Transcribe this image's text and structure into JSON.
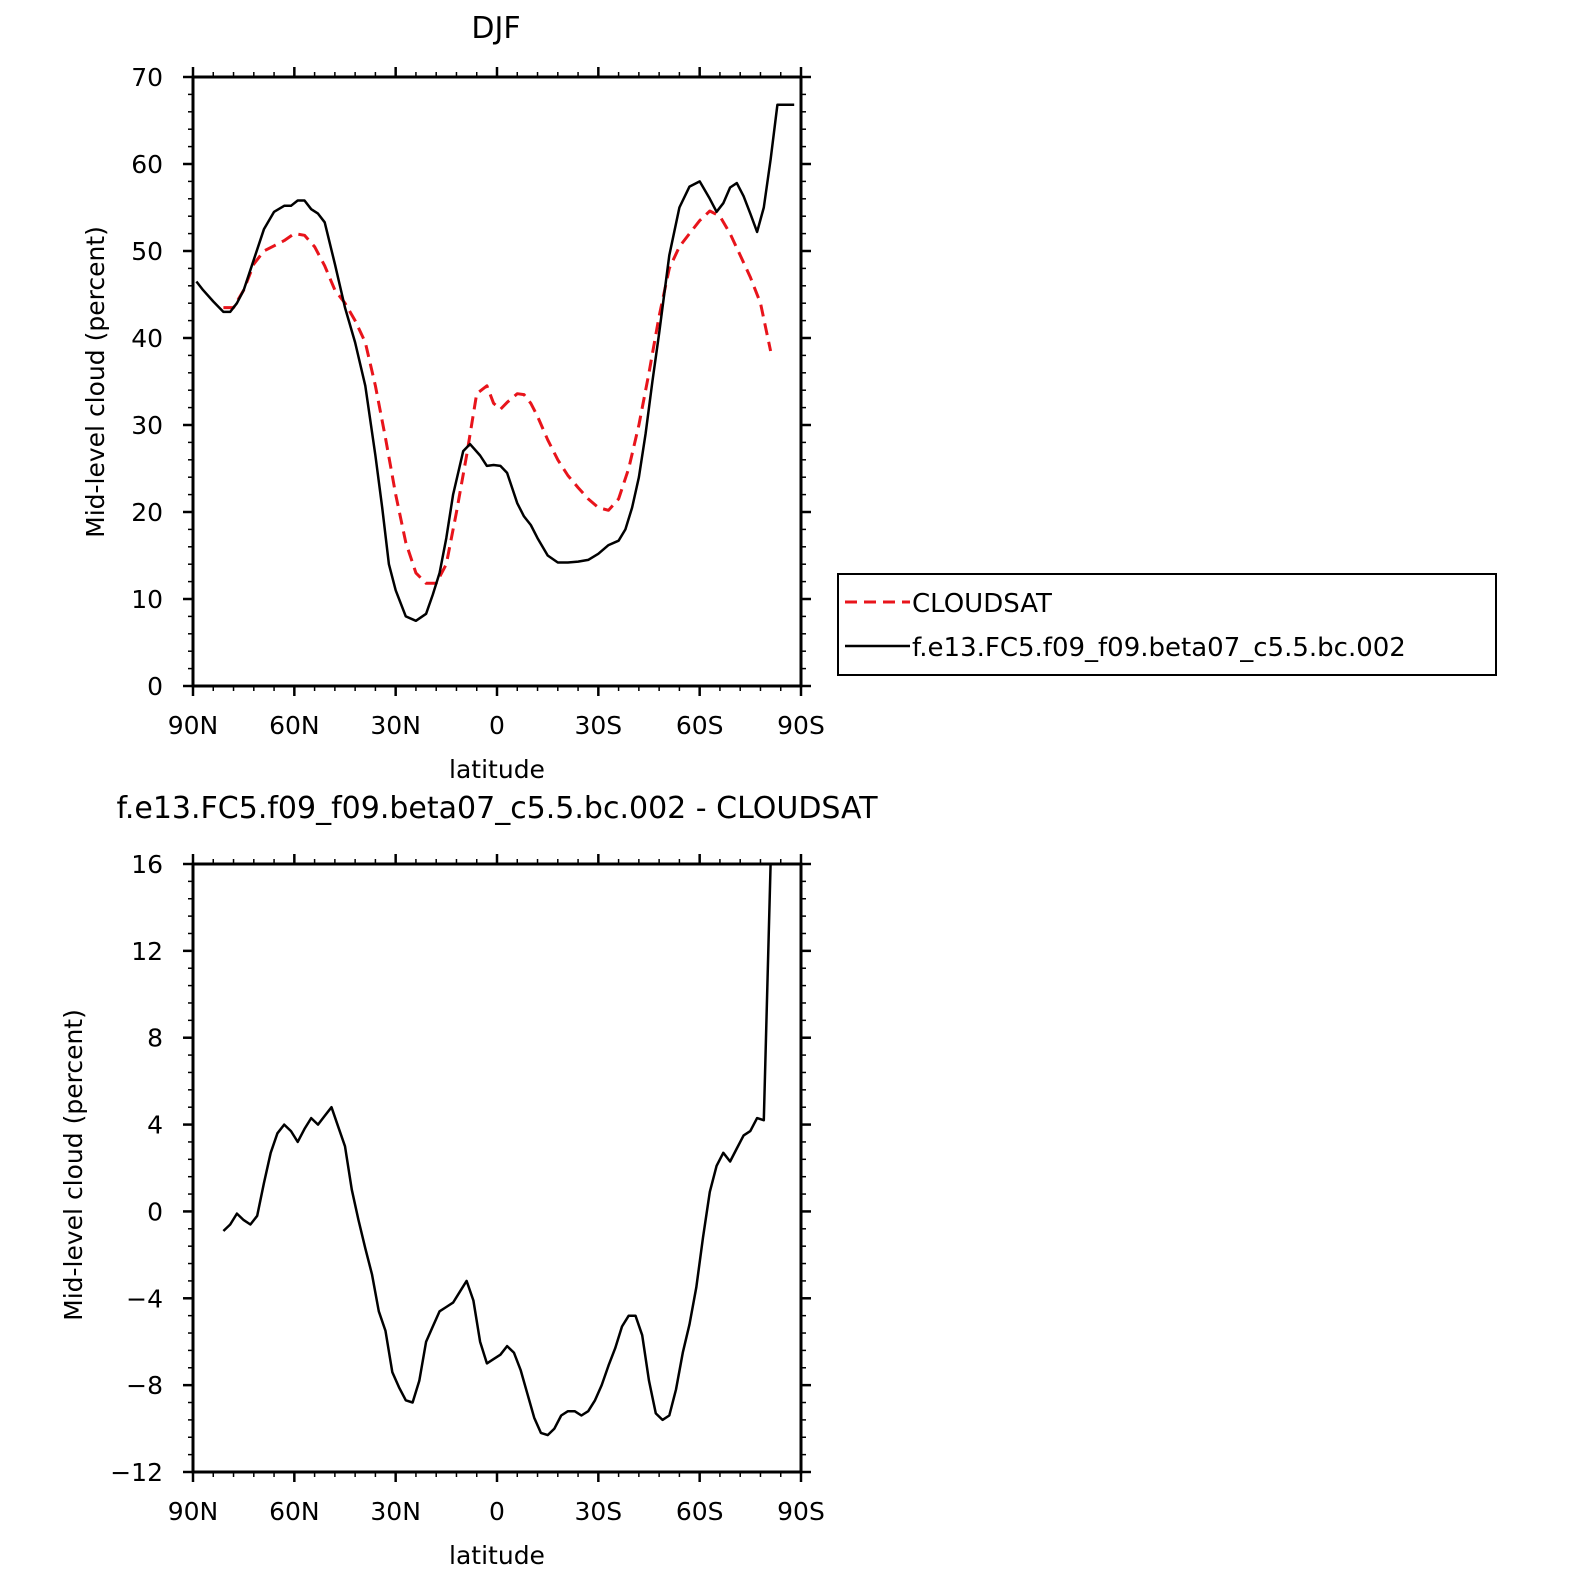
{
  "chart_data": [
    {
      "type": "line",
      "title": "DJF",
      "xlabel": "latitude",
      "ylabel": "Mid-level cloud (percent)",
      "xlim": [
        90,
        -90
      ],
      "ylim": [
        0,
        70
      ],
      "x_ticks": [
        90,
        60,
        30,
        0,
        -30,
        -60,
        -90
      ],
      "x_tick_labels": [
        "90N",
        "60N",
        "30N",
        "0",
        "30S",
        "60S",
        "90S"
      ],
      "y_ticks": [
        0,
        10,
        20,
        30,
        40,
        50,
        60,
        70
      ],
      "y_tick_labels": [
        "0",
        "10",
        "20",
        "30",
        "40",
        "50",
        "60",
        "70"
      ],
      "legend": "right",
      "grid": false,
      "series": [
        {
          "name": "CLOUDSAT",
          "color": "#e8141b",
          "dash": "dashed",
          "x": [
            81,
            78,
            75,
            72,
            69,
            66,
            63,
            60,
            57,
            54,
            51,
            48,
            45,
            42,
            39,
            36,
            33,
            30,
            27,
            24,
            21,
            18,
            15,
            12,
            9,
            6,
            3,
            1,
            -1,
            -3,
            -6,
            -8,
            -10,
            -12,
            -15,
            -18,
            -21,
            -24,
            -27,
            -30,
            -33,
            -36,
            -39,
            -42,
            -45,
            -48,
            -51,
            -54,
            -57,
            -60,
            -63,
            -66,
            -69,
            -72,
            -75,
            -78,
            -81
          ],
          "y": [
            43.5,
            43.5,
            45.5,
            48.5,
            50,
            50.6,
            51.2,
            52,
            51.8,
            50.5,
            48.3,
            45.5,
            44,
            42,
            39.5,
            34.5,
            28.5,
            22,
            16.5,
            13,
            11.8,
            11.8,
            14,
            20,
            26.5,
            33.6,
            34.5,
            32.5,
            31.8,
            32.6,
            33.6,
            33.5,
            32.5,
            31,
            28.3,
            26,
            24.2,
            22.8,
            21.5,
            20.5,
            20.2,
            21.5,
            25,
            30,
            36,
            42.5,
            48,
            50.5,
            52,
            53.5,
            54.6,
            54,
            52,
            49.5,
            47,
            44,
            38.5
          ]
        },
        {
          "name": "f.e13.FC5.f09_f09.beta07_c5.5.bc.002",
          "color": "#000000",
          "dash": "solid",
          "x": [
            89,
            87,
            84,
            81,
            79,
            77,
            75,
            72,
            69,
            66,
            63,
            61,
            59,
            57,
            55,
            53,
            51,
            48,
            45,
            42,
            39,
            36,
            34,
            32,
            30,
            27,
            24,
            21,
            19,
            17,
            15,
            13,
            10,
            8,
            5,
            3,
            1,
            -1,
            -3,
            -6,
            -8,
            -10,
            -12,
            -15,
            -18,
            -21,
            -24,
            -27,
            -30,
            -33,
            -36,
            -38,
            -40,
            -42,
            -44,
            -46,
            -48,
            -51,
            -54,
            -57,
            -60,
            -63,
            -65,
            -67,
            -69,
            -71,
            -73,
            -75,
            -77,
            -79,
            -81,
            -83,
            -85,
            -88
          ],
          "y": [
            46.5,
            45.5,
            44.2,
            43,
            43,
            44,
            45.5,
            49,
            52.5,
            54.5,
            55.2,
            55.2,
            55.8,
            55.8,
            54.8,
            54.3,
            53.3,
            48.5,
            43.5,
            39.5,
            34.5,
            26.5,
            20.5,
            14,
            11,
            8,
            7.5,
            8.3,
            10.5,
            13,
            17,
            22,
            27,
            27.8,
            26.5,
            25.3,
            25.4,
            25.3,
            24.5,
            21,
            19.5,
            18.5,
            17,
            15,
            14.2,
            14.2,
            14.3,
            14.5,
            15.2,
            16.2,
            16.7,
            18,
            20.5,
            24,
            29,
            35,
            40.5,
            49.5,
            55,
            57.4,
            58,
            56,
            54.5,
            55.5,
            57.3,
            57.8,
            56.3,
            54.3,
            52.2,
            55,
            60.5,
            66.8,
            66.8,
            66.8
          ]
        }
      ]
    },
    {
      "type": "line",
      "title": "f.e13.FC5.f09_f09.beta07_c5.5.bc.002 - CLOUDSAT",
      "xlabel": "latitude",
      "ylabel": "Mid-level cloud (percent)",
      "xlim": [
        90,
        -90
      ],
      "ylim": [
        -12,
        16
      ],
      "x_ticks": [
        90,
        60,
        30,
        0,
        -30,
        -60,
        -90
      ],
      "x_tick_labels": [
        "90N",
        "60N",
        "30N",
        "0",
        "30S",
        "60S",
        "90S"
      ],
      "y_ticks": [
        -12,
        -8,
        -4,
        0,
        4,
        8,
        12,
        16
      ],
      "y_tick_labels": [
        "−12",
        "−8",
        "−4",
        "0",
        "4",
        "8",
        "12",
        "16"
      ],
      "grid": false,
      "series": [
        {
          "color": "#000000",
          "dash": "solid",
          "x": [
            81,
            79,
            77,
            75,
            73,
            71,
            69,
            67,
            65,
            63,
            61,
            59,
            57,
            55,
            53,
            51,
            49,
            47,
            45,
            43,
            41,
            39,
            37,
            35,
            33,
            31,
            29,
            27,
            25,
            23,
            21,
            19,
            17,
            15,
            13,
            11,
            9,
            7,
            5,
            3,
            1,
            -1,
            -3,
            -5,
            -7,
            -9,
            -11,
            -13,
            -15,
            -17,
            -19,
            -21,
            -23,
            -25,
            -27,
            -29,
            -31,
            -33,
            -35,
            -37,
            -39,
            -41,
            -43,
            -45,
            -47,
            -49,
            -51,
            -53,
            -55,
            -57,
            -59,
            -61,
            -63,
            -65,
            -67,
            -69,
            -71,
            -73,
            -75,
            -77,
            -79,
            -81
          ],
          "y": [
            -0.9,
            -0.6,
            -0.1,
            -0.4,
            -0.6,
            -0.2,
            1.3,
            2.7,
            3.6,
            4,
            3.7,
            3.2,
            3.8,
            4.3,
            4,
            4.4,
            4.8,
            3.9,
            3,
            1,
            -0.4,
            -1.7,
            -2.9,
            -4.6,
            -5.5,
            -7.4,
            -8.1,
            -8.7,
            -8.8,
            -7.8,
            -6,
            -5.3,
            -4.6,
            -4.4,
            -4.2,
            -3.7,
            -3.2,
            -4.1,
            -6,
            -7,
            -6.8,
            -6.6,
            -6.2,
            -6.5,
            -7.3,
            -8.4,
            -9.5,
            -10.2,
            -10.3,
            -10,
            -9.4,
            -9.2,
            -9.2,
            -9.4,
            -9.2,
            -8.7,
            -8,
            -7.1,
            -6.3,
            -5.3,
            -4.8,
            -4.8,
            -5.7,
            -7.8,
            -9.3,
            -9.6,
            -9.4,
            -8.2,
            -6.5,
            -5.2,
            -3.5,
            -1.2,
            0.9,
            2.1,
            2.7,
            2.3,
            2.9,
            3.5,
            3.7,
            4.3,
            4.2,
            16
          ]
        }
      ]
    }
  ]
}
